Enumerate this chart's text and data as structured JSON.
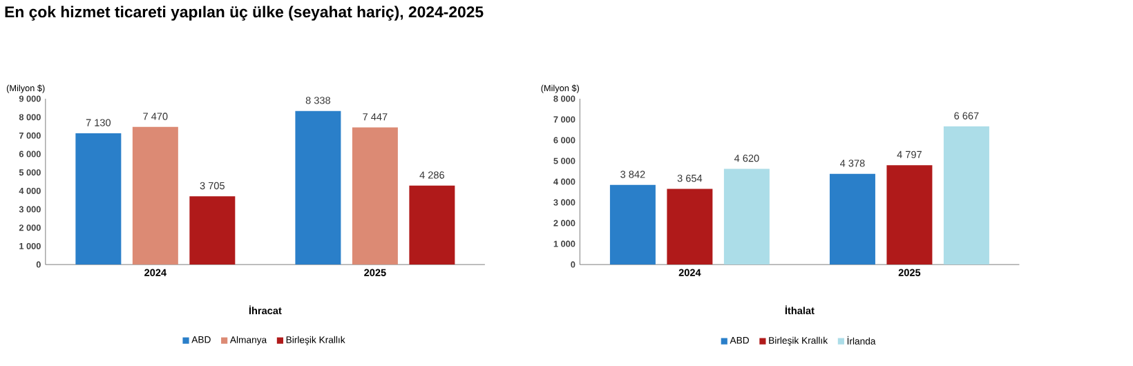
{
  "chart_data": [
    {
      "type": "bar",
      "title": "En çok hizmet ticareti yapılan üç ülke (seyahat hariç), 2024-2025",
      "xlabel": "İhracat",
      "ylabel": "(Milyon $)",
      "categories": [
        "2024",
        "2025"
      ],
      "ylim": [
        0,
        9000
      ],
      "yticks": [
        {
          "value": 0,
          "label": "0"
        },
        {
          "value": 1000,
          "label": "1 000"
        },
        {
          "value": 2000,
          "label": "2 000"
        },
        {
          "value": 3000,
          "label": "3 000"
        },
        {
          "value": 4000,
          "label": "4 000"
        },
        {
          "value": 5000,
          "label": "5 000"
        },
        {
          "value": 6000,
          "label": "6 000"
        },
        {
          "value": 7000,
          "label": "7 000"
        },
        {
          "value": 8000,
          "label": "8 000"
        },
        {
          "value": 9000,
          "label": "9 000"
        }
      ],
      "legend": "bottom",
      "series": [
        {
          "name": "ABD",
          "color": "#2a7fc9",
          "values": [
            7130,
            8338
          ],
          "value_labels": [
            "7 130",
            "8 338"
          ]
        },
        {
          "name": "Almanya",
          "color": "#dc8a74",
          "values": [
            7470,
            7447
          ],
          "value_labels": [
            "7 470",
            "7 447"
          ]
        },
        {
          "name": "Birleşik Krallık",
          "color": "#b01a1a",
          "values": [
            3705,
            4286
          ],
          "value_labels": [
            "3 705",
            "4 286"
          ]
        }
      ]
    },
    {
      "type": "bar",
      "xlabel": "İthalat",
      "ylabel": "(Milyon $)",
      "categories": [
        "2024",
        "2025"
      ],
      "ylim": [
        0,
        8000
      ],
      "yticks": [
        {
          "value": 0,
          "label": "0"
        },
        {
          "value": 1000,
          "label": "1 000"
        },
        {
          "value": 2000,
          "label": "2 000"
        },
        {
          "value": 3000,
          "label": "3 000"
        },
        {
          "value": 4000,
          "label": "4 000"
        },
        {
          "value": 5000,
          "label": "5 000"
        },
        {
          "value": 6000,
          "label": "6 000"
        },
        {
          "value": 7000,
          "label": "7 000"
        },
        {
          "value": 8000,
          "label": "8 000"
        }
      ],
      "legend": "bottom",
      "series": [
        {
          "name": "ABD",
          "color": "#2a7fc9",
          "values": [
            3842,
            4378
          ],
          "value_labels": [
            "3 842",
            "4 378"
          ]
        },
        {
          "name": "Birleşik Krallık",
          "color": "#b01a1a",
          "values": [
            3654,
            4797
          ],
          "value_labels": [
            "3 654",
            "4 797"
          ]
        },
        {
          "name": "İrlanda",
          "color": "#acdde8",
          "values": [
            4620,
            6667
          ],
          "value_labels": [
            "4 620",
            "6 667"
          ]
        }
      ]
    }
  ]
}
